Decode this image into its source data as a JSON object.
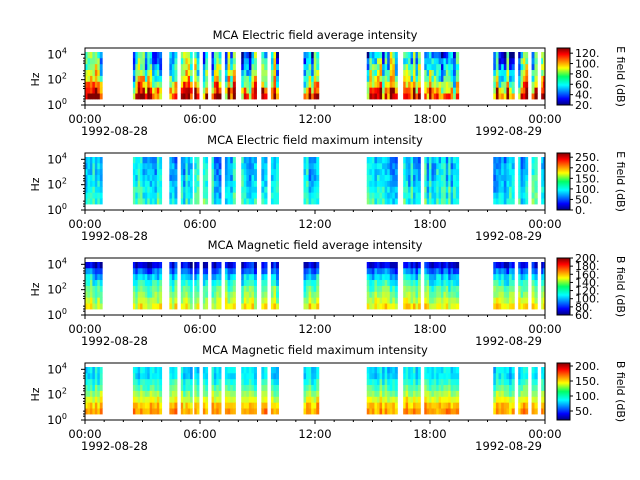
{
  "chart_data": [
    {
      "type": "heatmap",
      "title": "MCA  Electric field average intensity",
      "ylabel": "Hz",
      "colorbar_label": "E field (dB)",
      "colorbar_ticks": [
        "20.",
        "40.",
        "60.",
        "80.",
        "100.",
        "120."
      ],
      "clim": [
        20,
        130
      ],
      "profile": [
        0.85,
        0.75,
        0.6,
        0.5,
        0.45,
        0.4,
        0.35,
        0.3
      ],
      "contrast": 0.45,
      "yticks": [
        {
          "base": "10",
          "exp": "0"
        },
        {
          "base": "10",
          "exp": "2"
        },
        {
          "base": "10",
          "exp": "4"
        }
      ]
    },
    {
      "type": "heatmap",
      "title": "MCA  Electric field maximum intensity",
      "ylabel": "Hz",
      "colorbar_label": "E field (dB)",
      "colorbar_ticks": [
        "0.",
        "50.",
        "100.",
        "150.",
        "200.",
        "250."
      ],
      "clim": [
        0,
        270
      ],
      "profile": [
        0.42,
        0.4,
        0.38,
        0.36,
        0.35,
        0.34,
        0.33,
        0.32
      ],
      "contrast": 0.2,
      "yticks": [
        {
          "base": "10",
          "exp": "0"
        },
        {
          "base": "10",
          "exp": "2"
        },
        {
          "base": "10",
          "exp": "4"
        }
      ]
    },
    {
      "type": "heatmap",
      "title": "MCA  Magnetic field average intensity",
      "ylabel": "Hz",
      "colorbar_label": "B field (dB)",
      "colorbar_ticks": [
        "60.",
        "80.",
        "100.",
        "120.",
        "140.",
        "160.",
        "180.",
        "200."
      ],
      "clim": [
        60,
        200
      ],
      "profile": [
        0.62,
        0.56,
        0.5,
        0.46,
        0.4,
        0.33,
        0.22,
        0.1
      ],
      "contrast": 0.15,
      "yticks": [
        {
          "base": "10",
          "exp": "0"
        },
        {
          "base": "10",
          "exp": "2"
        },
        {
          "base": "10",
          "exp": "4"
        }
      ]
    },
    {
      "type": "heatmap",
      "title": "MCA  Magnetic field maximum intensity",
      "ylabel": "Hz",
      "colorbar_label": "B field (dB)",
      "colorbar_ticks": [
        "50.",
        "100.",
        "150.",
        "200."
      ],
      "clim": [
        20,
        210
      ],
      "profile": [
        0.72,
        0.68,
        0.6,
        0.52,
        0.45,
        0.4,
        0.35,
        0.35
      ],
      "contrast": 0.12,
      "yticks": [
        {
          "base": "10",
          "exp": "0"
        },
        {
          "base": "10",
          "exp": "2"
        },
        {
          "base": "10",
          "exp": "4"
        }
      ]
    }
  ],
  "x_axis": {
    "start": "1992-08-28T00:00",
    "end": "1992-08-29T00:00",
    "ticks": [
      "00:00",
      "06:00",
      "12:00",
      "18:00",
      "00:00"
    ],
    "start_date": "1992-08-28",
    "end_date": "1992-08-29"
  },
  "data_blocks_hours": [
    [
      0.0,
      0.9
    ],
    [
      2.5,
      4.0
    ],
    [
      4.4,
      4.8
    ],
    [
      5.0,
      5.6
    ],
    [
      5.7,
      5.95
    ],
    [
      6.15,
      6.4
    ],
    [
      6.6,
      7.1
    ],
    [
      7.3,
      7.85
    ],
    [
      8.15,
      8.95
    ],
    [
      9.2,
      9.5
    ],
    [
      9.7,
      10.1
    ],
    [
      11.4,
      12.2
    ],
    [
      14.7,
      16.3
    ],
    [
      16.6,
      17.5
    ],
    [
      17.7,
      19.2
    ],
    [
      19.2,
      19.5
    ],
    [
      21.3,
      22.4
    ],
    [
      22.6,
      23.1
    ],
    [
      23.3,
      23.6
    ],
    [
      23.8,
      24.0
    ]
  ],
  "colors": {
    "axis": "#000000",
    "background": "#ffffff"
  }
}
